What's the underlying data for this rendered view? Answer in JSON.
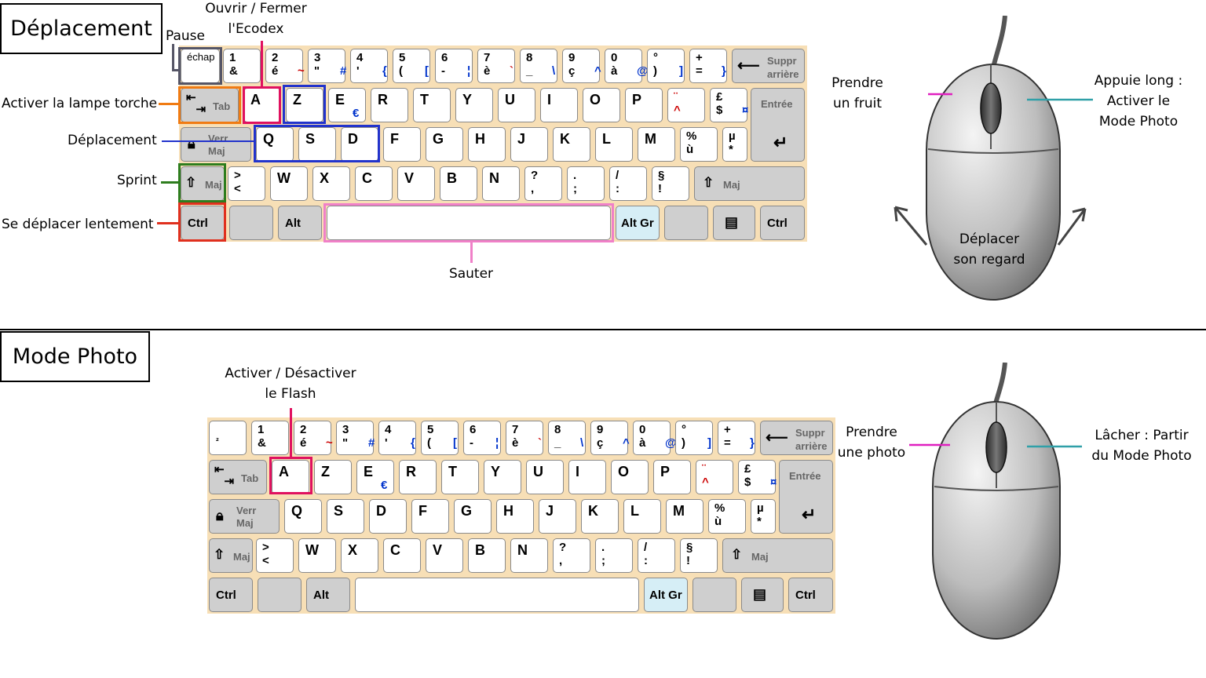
{
  "sections": {
    "top_title": "Déplacement",
    "bottom_title": "Mode Photo"
  },
  "keyboard": {
    "keys": {
      "esc": "échap",
      "sq": "²",
      "d1_top": "1",
      "d1_bot": "&",
      "d2_top": "2",
      "d2_bot": "é",
      "d2_alt": "~",
      "d3_top": "3",
      "d3_bot": "\"",
      "d3_alt": "#",
      "d4_top": "4",
      "d4_bot": "'",
      "d4_alt": "{",
      "d5_top": "5",
      "d5_bot": "(",
      "d5_alt": "[",
      "d6_top": "6",
      "d6_bot": "-",
      "d6_alt": "¦",
      "d7_top": "7",
      "d7_bot": "è",
      "d7_alt": "`",
      "d8_top": "8",
      "d8_bot": "_",
      "d8_alt": "\\",
      "d9_top": "9",
      "d9_bot": "ç",
      "d9_alt": "^",
      "d0_top": "0",
      "d0_bot": "à",
      "d0_alt": "@",
      "deg_top": "°",
      "deg_bot": ")",
      "deg_alt": "]",
      "plus_top": "+",
      "plus_bot": "=",
      "plus_alt": "}",
      "backspace_1": "Suppr",
      "backspace_2": "arrière",
      "tab": "Tab",
      "A": "A",
      "Z": "Z",
      "E": "E",
      "E_alt": "€",
      "R": "R",
      "T": "T",
      "Y": "Y",
      "U": "U",
      "I": "I",
      "O": "O",
      "P": "P",
      "trema": "¨",
      "circ": "^",
      "pound_top": "£",
      "pound_bot": "$",
      "pound_alt": "¤",
      "enter": "Entrée",
      "caps_1": "Verr",
      "caps_2": "Maj",
      "Q": "Q",
      "S": "S",
      "D": "D",
      "F": "F",
      "G": "G",
      "H": "H",
      "J": "J",
      "K": "K",
      "L": "L",
      "M": "M",
      "pct_top": "%",
      "pct_bot": "ù",
      "mu_top": "µ",
      "mu_bot": "*",
      "shift": "Maj",
      "gt_top": ">",
      "gt_bot": "<",
      "W": "W",
      "X": "X",
      "C": "C",
      "V": "V",
      "B": "B",
      "N": "N",
      "q_top": "?",
      "q_bot": ",",
      "dot_top": ".",
      "dot_bot": ";",
      "sl_top": "/",
      "sl_bot": ":",
      "sec_top": "§",
      "sec_bot": "!",
      "rshift": "Maj",
      "ctrl": "Ctrl",
      "alt": "Alt",
      "altgr": "Alt Gr",
      "rctrl": "Ctrl"
    }
  },
  "top_labels": {
    "pause": "Pause",
    "ecodex_1": "Ouvrir / Fermer",
    "ecodex_2": "l'Ecodex",
    "torch": "Activer la lampe torche",
    "move": "Déplacement",
    "sprint": "Sprint",
    "slow": "Se déplacer lentement",
    "jump": "Sauter",
    "mouse_left_1": "Prendre",
    "mouse_left_2": "un fruit",
    "mouse_right_1": "Appuie long :",
    "mouse_right_2": "Activer le",
    "mouse_right_3": "Mode Photo",
    "mouse_move_1": "Déplacer",
    "mouse_move_2": "son regard"
  },
  "bottom_labels": {
    "flash_1": "Activer / Désactiver",
    "flash_2": "le Flash",
    "mouse_left_1": "Prendre",
    "mouse_left_2": "une photo",
    "mouse_right_1": "Lâcher : Partir",
    "mouse_right_2": "du Mode Photo"
  },
  "colors": {
    "pause": "#555566",
    "ecodex": "#e0115f",
    "torch": "#f07b12",
    "move": "#2233cc",
    "sprint": "#2e7d1e",
    "slow": "#e0301e",
    "jump": "#f080c8",
    "mouse_left": "#e020c0",
    "mouse_right": "#30a0a8"
  }
}
